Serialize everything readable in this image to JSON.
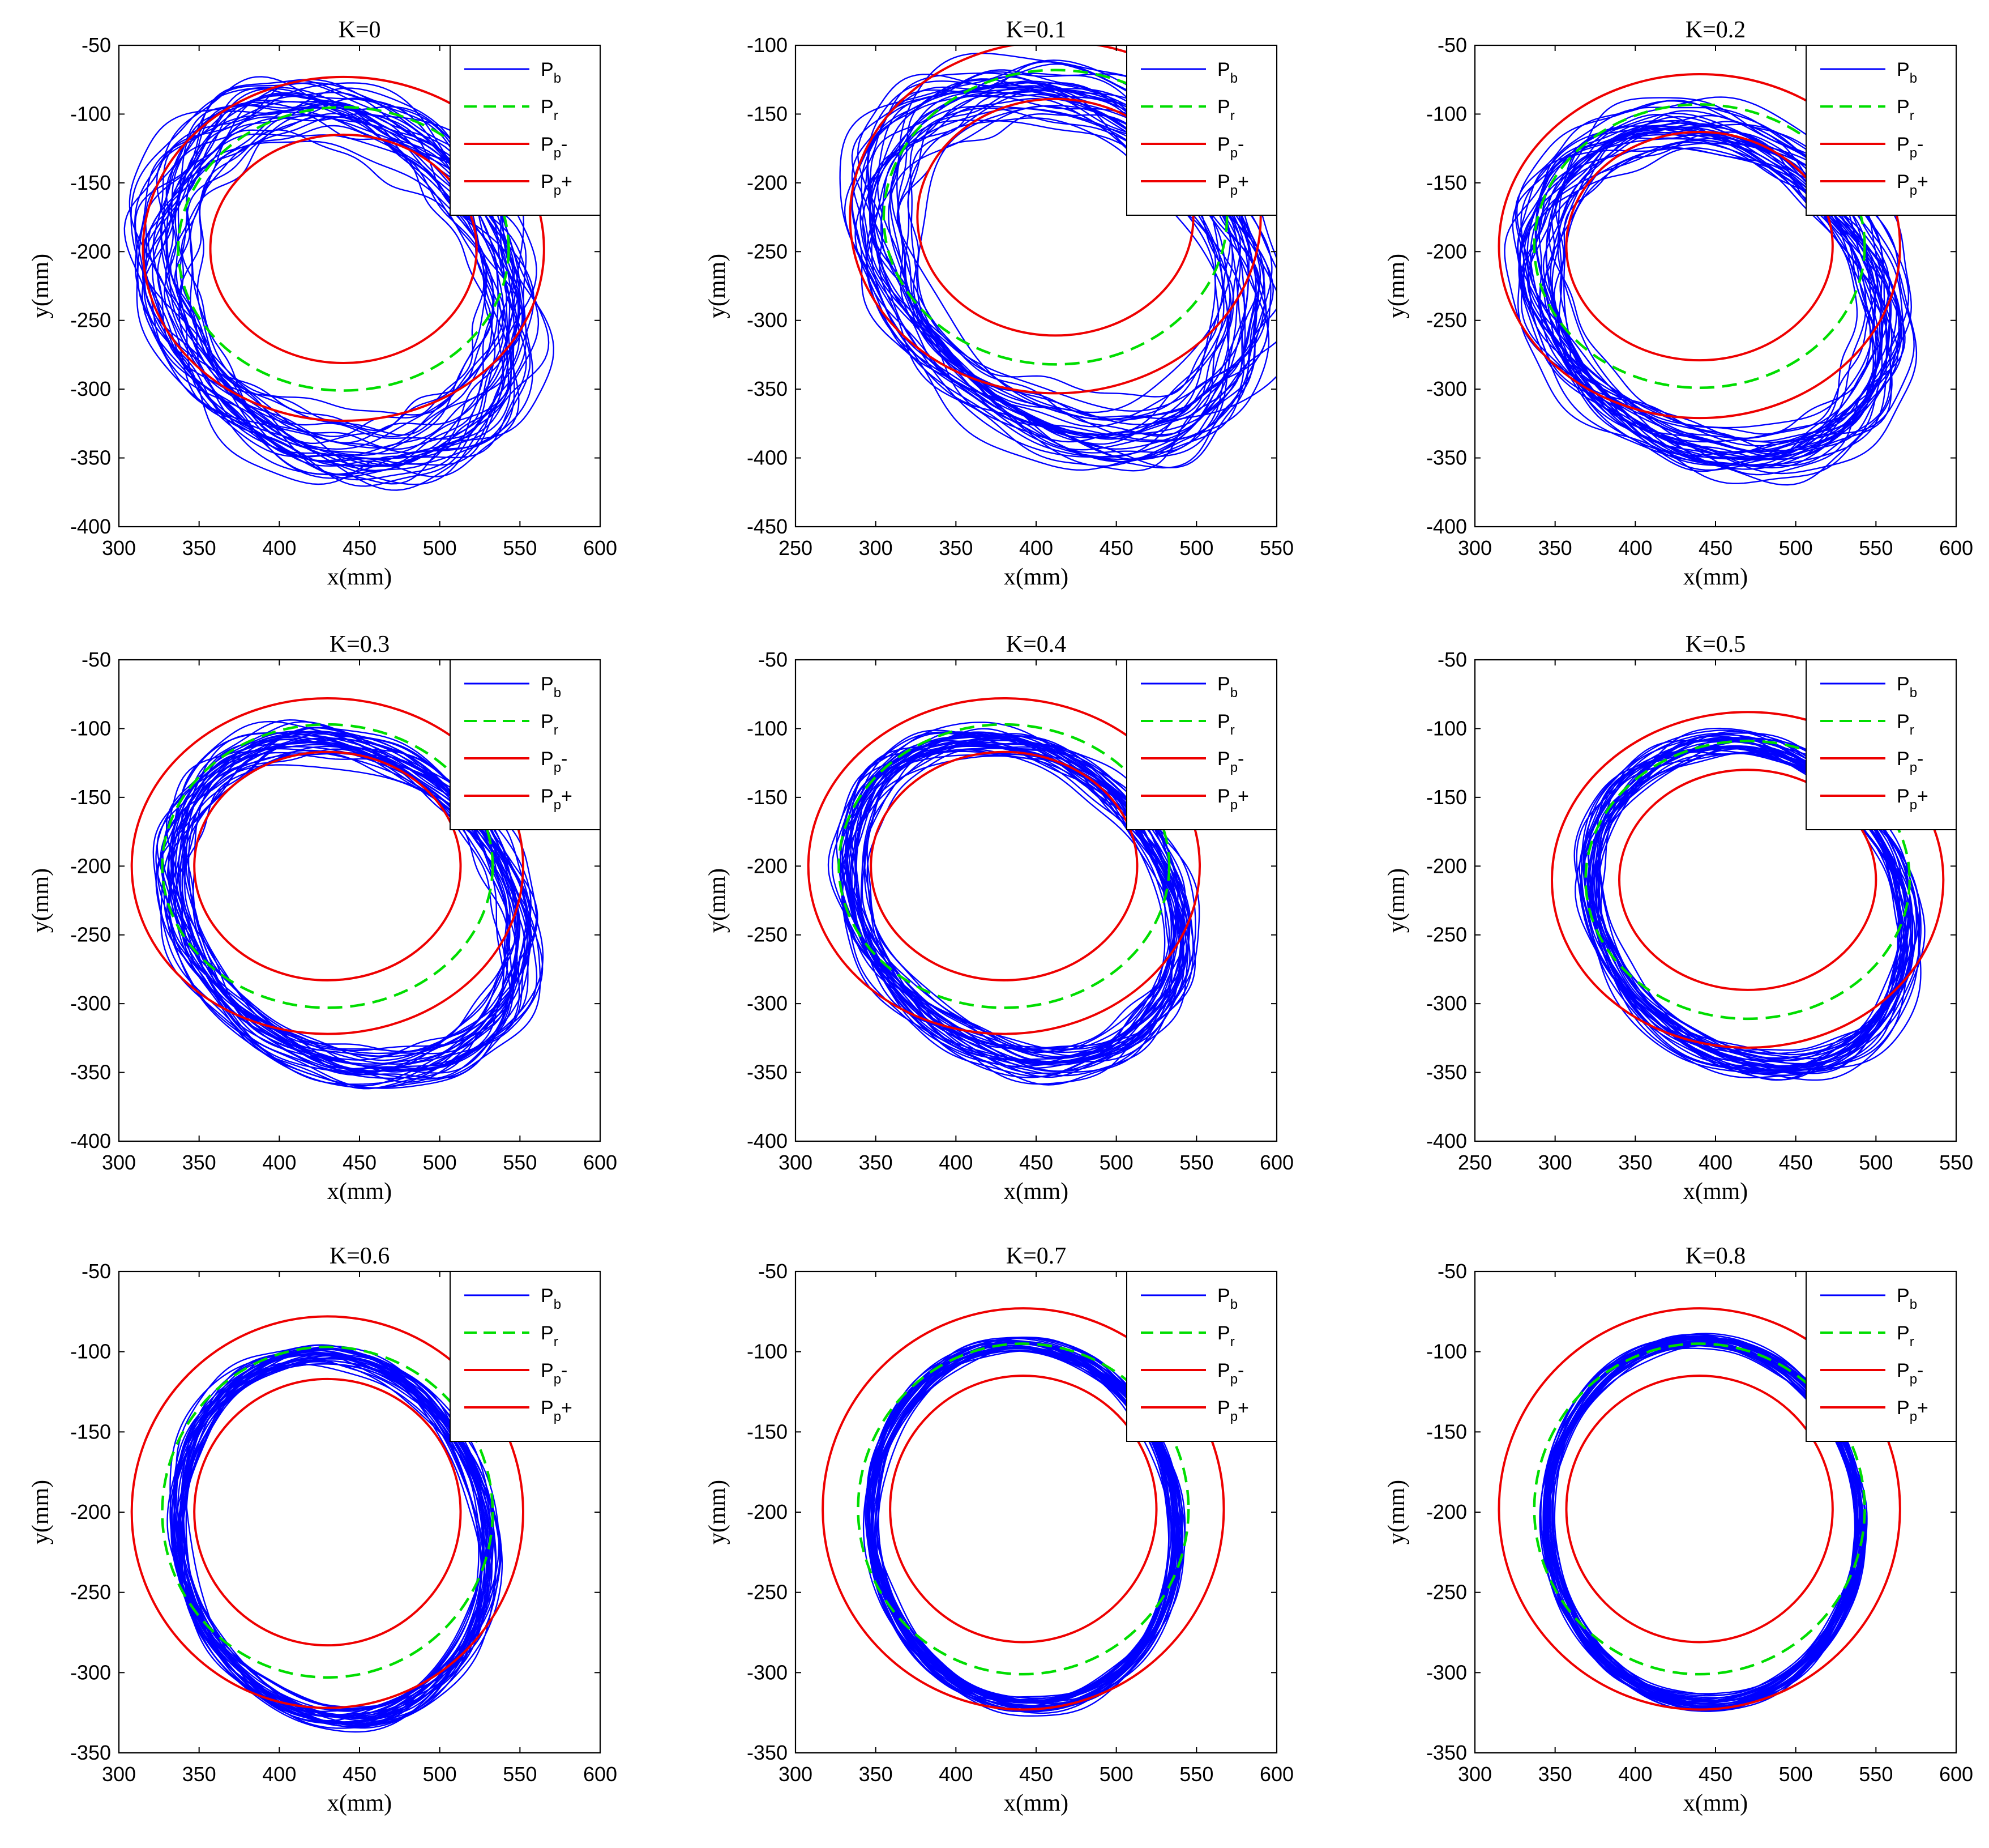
{
  "figure": {
    "colors": {
      "blue": "#0000ff",
      "green": "#00dd00",
      "red": "#ee0000",
      "axis": "#000000"
    },
    "legend_entries": [
      {
        "base": "P",
        "sub": "b",
        "suffix": "",
        "style": "blue-solid"
      },
      {
        "base": "P",
        "sub": "r",
        "suffix": "",
        "style": "green-dashed"
      },
      {
        "base": "P",
        "sub": "p",
        "suffix": "-",
        "style": "red-solid"
      },
      {
        "base": "P",
        "sub": "p",
        "suffix": "+",
        "style": "red-solid"
      }
    ]
  },
  "chart_data": [
    {
      "type": "line",
      "title": "K=0",
      "xlabel": "x(mm)",
      "ylabel": "y(mm)",
      "xlim": [
        300,
        600
      ],
      "ylim": [
        -400,
        -50
      ],
      "xticks": [
        "300",
        "350",
        "400",
        "450",
        "500",
        "550",
        "600"
      ],
      "yticks": [
        "-400",
        "-350",
        "-300",
        "-250",
        "-200",
        "-150",
        "-100",
        "-50"
      ],
      "reference_circle": {
        "cx": 440,
        "cy": -198,
        "r": 103
      },
      "outer_circle": {
        "cx": 440,
        "cy": -198,
        "r": 125
      },
      "inner_circle": {
        "cx": 440,
        "cy": -198,
        "r": 83
      },
      "trajectory": {
        "cx": 435,
        "cy": -222,
        "rx": 100,
        "ry": 128,
        "rot": 25,
        "spread": 0.14,
        "loops": 34,
        "noise": 0.06
      }
    },
    {
      "type": "line",
      "title": "K=0.1",
      "xlabel": "x(mm)",
      "ylabel": "y(mm)",
      "xlim": [
        250,
        550
      ],
      "ylim": [
        -450,
        -100
      ],
      "xticks": [
        "250",
        "300",
        "350",
        "400",
        "450",
        "500",
        "550"
      ],
      "yticks": [
        "-450",
        "-400",
        "-350",
        "-300",
        "-250",
        "-200",
        "-150",
        "-100"
      ],
      "reference_circle": {
        "cx": 412,
        "cy": -225,
        "r": 107
      },
      "outer_circle": {
        "cx": 412,
        "cy": -225,
        "r": 128
      },
      "inner_circle": {
        "cx": 412,
        "cy": -225,
        "r": 86
      },
      "trajectory": {
        "cx": 418,
        "cy": -258,
        "rx": 102,
        "ry": 135,
        "rot": 35,
        "spread": 0.13,
        "loops": 34,
        "noise": 0.05
      }
    },
    {
      "type": "line",
      "title": "K=0.2",
      "xlabel": "x(mm)",
      "ylabel": "y(mm)",
      "xlim": [
        300,
        600
      ],
      "ylim": [
        -400,
        -50
      ],
      "xticks": [
        "300",
        "350",
        "400",
        "450",
        "500",
        "550",
        "600"
      ],
      "yticks": [
        "-400",
        "-350",
        "-300",
        "-250",
        "-200",
        "-150",
        "-100",
        "-50"
      ],
      "reference_circle": {
        "cx": 440,
        "cy": -196,
        "r": 103
      },
      "outer_circle": {
        "cx": 440,
        "cy": -196,
        "r": 125
      },
      "inner_circle": {
        "cx": 440,
        "cy": -196,
        "r": 83
      },
      "trajectory": {
        "cx": 448,
        "cy": -228,
        "rx": 102,
        "ry": 128,
        "rot": 33,
        "spread": 0.11,
        "loops": 34,
        "noise": 0.045
      }
    },
    {
      "type": "line",
      "title": "K=0.3",
      "xlabel": "x(mm)",
      "ylabel": "y(mm)",
      "xlim": [
        300,
        600
      ],
      "ylim": [
        -400,
        -50
      ],
      "xticks": [
        "300",
        "350",
        "400",
        "450",
        "500",
        "550",
        "600"
      ],
      "yticks": [
        "-400",
        "-350",
        "-300",
        "-250",
        "-200",
        "-150",
        "-100",
        "-50"
      ],
      "reference_circle": {
        "cx": 430,
        "cy": -200,
        "r": 103
      },
      "outer_circle": {
        "cx": 430,
        "cy": -200,
        "r": 122
      },
      "inner_circle": {
        "cx": 430,
        "cy": -200,
        "r": 83
      },
      "trajectory": {
        "cx": 442,
        "cy": -228,
        "rx": 100,
        "ry": 126,
        "rot": 32,
        "spread": 0.09,
        "loops": 32,
        "noise": 0.035
      }
    },
    {
      "type": "line",
      "title": "K=0.4",
      "xlabel": "x(mm)",
      "ylabel": "y(mm)",
      "xlim": [
        300,
        600
      ],
      "ylim": [
        -400,
        -50
      ],
      "xticks": [
        "300",
        "350",
        "400",
        "450",
        "500",
        "550",
        "600"
      ],
      "yticks": [
        "-400",
        "-350",
        "-300",
        "-250",
        "-200",
        "-150",
        "-100",
        "-50"
      ],
      "reference_circle": {
        "cx": 430,
        "cy": -200,
        "r": 103
      },
      "outer_circle": {
        "cx": 430,
        "cy": -200,
        "r": 122
      },
      "inner_circle": {
        "cx": 430,
        "cy": -200,
        "r": 83
      },
      "trajectory": {
        "cx": 437,
        "cy": -225,
        "rx": 96,
        "ry": 124,
        "rot": 30,
        "spread": 0.08,
        "loops": 32,
        "noise": 0.03
      }
    },
    {
      "type": "line",
      "title": "K=0.5",
      "xlabel": "x(mm)",
      "ylabel": "y(mm)",
      "xlim": [
        250,
        550
      ],
      "ylim": [
        -400,
        -50
      ],
      "xticks": [
        "250",
        "300",
        "350",
        "400",
        "450",
        "500",
        "550"
      ],
      "yticks": [
        "-400",
        "-350",
        "-300",
        "-250",
        "-200",
        "-150",
        "-100",
        "-50"
      ],
      "reference_circle": {
        "cx": 420,
        "cy": -210,
        "r": 101
      },
      "outer_circle": {
        "cx": 420,
        "cy": -210,
        "r": 122
      },
      "inner_circle": {
        "cx": 420,
        "cy": -210,
        "r": 80
      },
      "trajectory": {
        "cx": 422,
        "cy": -228,
        "rx": 96,
        "ry": 122,
        "rot": 22,
        "spread": 0.06,
        "loops": 30,
        "noise": 0.025
      }
    },
    {
      "type": "line",
      "title": "K=0.6",
      "xlabel": "x(mm)",
      "ylabel": "y(mm)",
      "xlim": [
        300,
        600
      ],
      "ylim": [
        -350,
        -50
      ],
      "xticks": [
        "300",
        "350",
        "400",
        "450",
        "500",
        "550",
        "600"
      ],
      "yticks": [
        "-350",
        "-300",
        "-250",
        "-200",
        "-150",
        "-100",
        "-50"
      ],
      "reference_circle": {
        "cx": 430,
        "cy": -200,
        "r": 103
      },
      "outer_circle": {
        "cx": 430,
        "cy": -200,
        "r": 122
      },
      "inner_circle": {
        "cx": 430,
        "cy": -200,
        "r": 83
      },
      "trajectory": {
        "cx": 434,
        "cy": -215,
        "rx": 96,
        "ry": 115,
        "rot": 15,
        "spread": 0.05,
        "loops": 30,
        "noise": 0.02
      }
    },
    {
      "type": "line",
      "title": "K=0.7",
      "xlabel": "x(mm)",
      "ylabel": "y(mm)",
      "xlim": [
        300,
        600
      ],
      "ylim": [
        -350,
        -50
      ],
      "xticks": [
        "300",
        "350",
        "400",
        "450",
        "500",
        "550",
        "600"
      ],
      "yticks": [
        "-350",
        "-300",
        "-250",
        "-200",
        "-150",
        "-100",
        "-50"
      ],
      "reference_circle": {
        "cx": 442,
        "cy": -198,
        "r": 103
      },
      "outer_circle": {
        "cx": 442,
        "cy": -198,
        "r": 125
      },
      "inner_circle": {
        "cx": 442,
        "cy": -198,
        "r": 83
      },
      "trajectory": {
        "cx": 443,
        "cy": -208,
        "rx": 95,
        "ry": 113,
        "rot": 8,
        "spread": 0.035,
        "loops": 30,
        "noise": 0.012
      }
    },
    {
      "type": "line",
      "title": "K=0.8",
      "xlabel": "x(mm)",
      "ylabel": "y(mm)",
      "xlim": [
        300,
        600
      ],
      "ylim": [
        -350,
        -50
      ],
      "xticks": [
        "300",
        "350",
        "400",
        "450",
        "500",
        "550",
        "600"
      ],
      "yticks": [
        "-350",
        "-300",
        "-250",
        "-200",
        "-150",
        "-100",
        "-50"
      ],
      "reference_circle": {
        "cx": 440,
        "cy": -198,
        "r": 103
      },
      "outer_circle": {
        "cx": 440,
        "cy": -198,
        "r": 125
      },
      "inner_circle": {
        "cx": 440,
        "cy": -198,
        "r": 83
      },
      "trajectory": {
        "cx": 442,
        "cy": -206,
        "rx": 97,
        "ry": 113,
        "rot": 5,
        "spread": 0.03,
        "loops": 30,
        "noise": 0.01
      }
    }
  ]
}
